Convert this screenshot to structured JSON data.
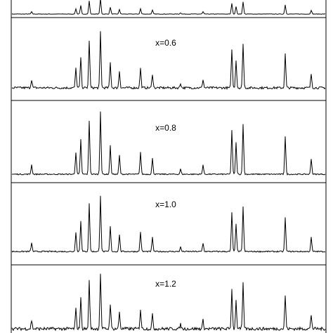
{
  "panels": [
    {
      "label": "x=0.6"
    },
    {
      "label": "x=0.8"
    },
    {
      "label": "x=1.0"
    },
    {
      "label": "x=1.2"
    }
  ]
}
